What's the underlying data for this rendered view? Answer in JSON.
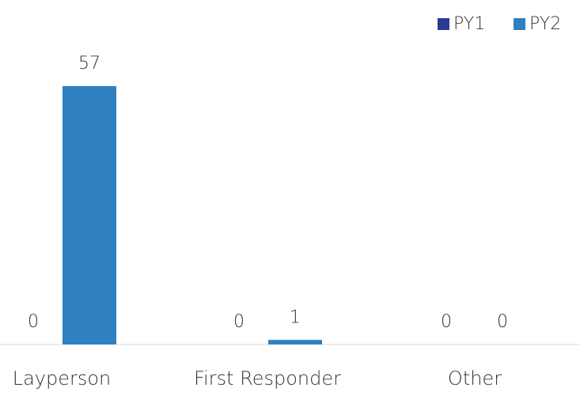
{
  "chart_data": {
    "type": "bar",
    "categories": [
      "Layperson",
      "First Responder",
      "Other"
    ],
    "series": [
      {
        "name": "PY1",
        "color": "#2b3990",
        "values": [
          0,
          0,
          0
        ]
      },
      {
        "name": "PY2",
        "color": "#2e80c0",
        "values": [
          57,
          1,
          0
        ]
      }
    ],
    "legend": "top-right"
  }
}
